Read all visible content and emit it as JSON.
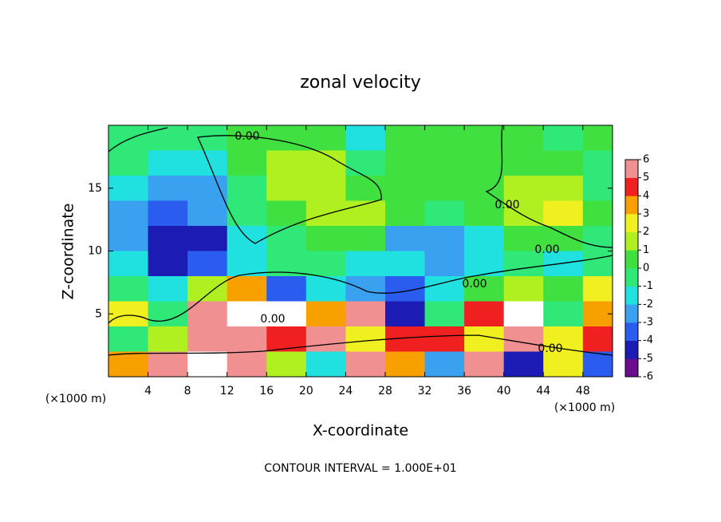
{
  "chart_data": {
    "type": "heatmap",
    "title": "zonal velocity",
    "x_label": "X-coordinate",
    "y_label": "Z-coordinate",
    "x_unit_label": "(×1000 m)",
    "y_unit_label": "(×1000 m)",
    "footer": "CONTOUR INTERVAL = 1.000E+01",
    "contour_labels": [
      "0.00",
      "0.00",
      "0.00",
      "0.00",
      "0.00",
      "0.00"
    ],
    "x": [
      2,
      6,
      10,
      14,
      18,
      22,
      26,
      30,
      34,
      38,
      42,
      46,
      50
    ],
    "y": [
      19,
      17,
      15,
      13,
      11,
      9,
      7,
      5,
      3,
      1
    ],
    "values": [
      [
        -1,
        -1,
        -1,
        0,
        0,
        0,
        -2,
        0,
        0,
        0,
        0,
        -1,
        0
      ],
      [
        -1,
        -2,
        -2,
        0,
        1,
        1,
        -1,
        0,
        0,
        0,
        0,
        0,
        -1
      ],
      [
        -2,
        -3,
        -3,
        -1,
        1,
        1,
        0,
        0,
        0,
        0,
        1,
        1,
        -1
      ],
      [
        -3,
        -4,
        -3,
        -1,
        0,
        1,
        1,
        0,
        -1,
        0,
        1,
        2,
        0
      ],
      [
        -3,
        -5,
        -5,
        -2,
        -1,
        0,
        0,
        -3,
        -3,
        -2,
        0,
        0,
        -1
      ],
      [
        -2,
        -5,
        -4,
        -2,
        -1,
        -1,
        -2,
        -2,
        -3,
        -2,
        -1,
        -2,
        -1
      ],
      [
        -1,
        -2,
        1,
        3,
        -4,
        -2,
        -3,
        -4,
        -2,
        0,
        1,
        0,
        2
      ],
      [
        2,
        -1,
        5,
        8,
        -8,
        3,
        5,
        -5,
        -1,
        4,
        8,
        -1,
        3
      ],
      [
        -1,
        1,
        5,
        6,
        4,
        5,
        2,
        4,
        4,
        2,
        5,
        2,
        4
      ],
      [
        3,
        6,
        8,
        5,
        1,
        -2,
        5,
        3,
        -3,
        5,
        -5,
        2,
        -4
      ]
    ],
    "xlim": [
      0,
      51
    ],
    "ylim": [
      0,
      20
    ],
    "xticks": [
      4,
      8,
      12,
      16,
      20,
      24,
      28,
      32,
      36,
      40,
      44,
      48
    ],
    "yticks": [
      5,
      10,
      15
    ],
    "colorbar": {
      "ticks": [
        6,
        5,
        4,
        3,
        2,
        1,
        0,
        -1,
        -2,
        -3,
        -4,
        -5,
        -6
      ],
      "colors": [
        "#6a0d8e",
        "#1c1cb4",
        "#2a5cf0",
        "#3aa0f0",
        "#20e0e0",
        "#30e878",
        "#40e040",
        "#b0f020",
        "#f0f020",
        "#f8a000",
        "#f02020",
        "#f09090"
      ],
      "out_of_range_color": "#ffffff"
    }
  }
}
